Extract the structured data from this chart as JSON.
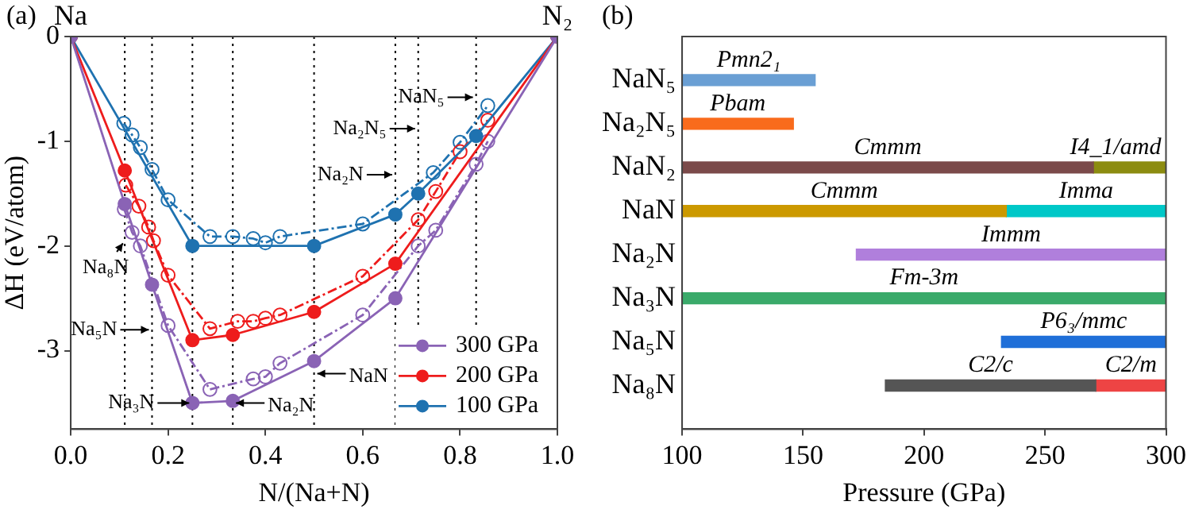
{
  "chart_data": [
    {
      "type": "line",
      "xlabel": "N/(Na+N)",
      "ylabel": "ΔH (eV/atom)",
      "xlim": [
        0,
        1
      ],
      "xticks": [
        {
          "value": 0,
          "label": "0.0"
        },
        {
          "value": 0.2,
          "label": "0.2"
        },
        {
          "value": 0.4,
          "label": "0.4"
        },
        {
          "value": 0.6,
          "label": "0.6"
        },
        {
          "value": 0.8,
          "label": "0.8"
        },
        {
          "value": 1,
          "label": "1.0"
        }
      ],
      "ylim": [
        -3.75,
        0
      ],
      "yticks": [
        0,
        -1,
        -2,
        -3
      ],
      "legend": "bottom right",
      "grid": false,
      "series": [
        {
          "name": "300 GPa",
          "color": "#8a63b5",
          "marker": "circle",
          "line_style": "solid",
          "x": [
            0,
            0.111,
            0.167,
            0.25,
            0.333,
            0.5,
            0.667,
            1
          ],
          "values": [
            0,
            -1.6,
            -2.37,
            -3.5,
            -3.48,
            -3.1,
            -2.5,
            0
          ]
        },
        {
          "name": "200 GPa",
          "color": "#ee1c1c",
          "marker": "circle",
          "line_style": "solid",
          "x": [
            0,
            0.111,
            0.25,
            0.333,
            0.5,
            0.667,
            1
          ],
          "values": [
            0,
            -1.28,
            -2.9,
            -2.85,
            -2.63,
            -2.17,
            0
          ]
        },
        {
          "name": "100 GPa",
          "color": "#1f72b0",
          "marker": "circle",
          "line_style": "solid",
          "x": [
            0,
            0.25,
            0.5,
            0.667,
            0.714,
            0.833,
            1
          ],
          "values": [
            0,
            -2.0,
            -2.0,
            -1.7,
            -1.5,
            -0.95,
            0
          ]
        },
        {
          "color": "#8a63b5",
          "marker": "open circle",
          "line_style": "dashdot",
          "x": [
            0.11,
            0.126,
            0.143,
            0.2,
            0.286,
            0.375,
            0.4,
            0.43,
            0.6,
            0.714,
            0.75,
            0.833,
            0.857
          ],
          "values": [
            -1.65,
            -1.87,
            -2.0,
            -2.76,
            -3.37,
            -3.27,
            -3.25,
            -3.12,
            -2.66,
            -2.0,
            -1.85,
            -1.22,
            -1.0
          ]
        },
        {
          "color": "#ee1c1c",
          "marker": "open circle",
          "line_style": "dashdot",
          "x": [
            0.113,
            0.14,
            0.16,
            0.17,
            0.2,
            0.286,
            0.343,
            0.375,
            0.4,
            0.43,
            0.6,
            0.714,
            0.75,
            0.8,
            0.857
          ],
          "values": [
            -1.42,
            -1.62,
            -1.82,
            -1.95,
            -2.28,
            -2.79,
            -2.72,
            -2.72,
            -2.69,
            -2.66,
            -2.29,
            -1.75,
            -1.48,
            -1.1,
            -0.8
          ]
        },
        {
          "color": "#1f72b0",
          "marker": "open circle",
          "line_style": "dashdot",
          "x": [
            0.109,
            0.126,
            0.143,
            0.167,
            0.2,
            0.286,
            0.333,
            0.375,
            0.4,
            0.43,
            0.6,
            0.745,
            0.8,
            0.857
          ],
          "values": [
            -0.83,
            -0.94,
            -1.06,
            -1.27,
            -1.56,
            -1.91,
            -1.91,
            -1.93,
            -1.97,
            -1.91,
            -1.79,
            -1.3,
            -1.01,
            -0.66
          ]
        }
      ],
      "ref_lines": [
        {
          "axis": "x",
          "value": 0.111,
          "color": "#000000",
          "line_style": "dotted"
        },
        {
          "axis": "x",
          "value": 0.167,
          "color": "#000000",
          "line_style": "dotted"
        },
        {
          "axis": "x",
          "value": 0.25,
          "color": "#000000",
          "line_style": "dotted"
        },
        {
          "axis": "x",
          "value": 0.333,
          "color": "#000000",
          "line_style": "dotted"
        },
        {
          "axis": "x",
          "value": 0.5,
          "color": "#000000",
          "line_style": "dotted"
        },
        {
          "axis": "x",
          "value": 0.667,
          "color": "#000000",
          "line_style": "dotted"
        },
        {
          "axis": "x",
          "value": 0.714,
          "color": "#000000",
          "line_style": "dotted"
        },
        {
          "axis": "x",
          "value": 0.833,
          "color": "#000000",
          "line_style": "dotted"
        }
      ],
      "annotations": [
        "(a)",
        {
          "text": "Na",
          "x": 0,
          "y": 0
        },
        {
          "text": "N₂",
          "x": 1,
          "y": 0
        },
        {
          "text": "NaN₅",
          "x": 0.833,
          "y": -0.58
        },
        {
          "text": "Na₂N₅",
          "x": 0.714,
          "y": -0.88
        },
        {
          "text": "Na₂N",
          "x": 0.667,
          "y": -1.32
        },
        {
          "text": "Na₈N",
          "x": 0.111,
          "y": -1.95
        },
        {
          "text": "Na₅N",
          "x": 0.167,
          "y": -2.8
        },
        {
          "text": "Na₃N",
          "x": 0.25,
          "y": -3.5
        },
        {
          "text": "Na₂N",
          "x": 0.333,
          "y": -3.5
        },
        {
          "text": "NaN",
          "x": 0.5,
          "y": -3.22
        }
      ]
    },
    {
      "type": "bar",
      "orientation": "horizontal",
      "xlabel": "Pressure (GPa)",
      "categories": [
        "NaN₅",
        "Na₂N₅",
        "NaN₂",
        "NaN",
        "Na₂N",
        "Na₃N",
        "Na₅N",
        "Na₈N"
      ],
      "xlim": [
        100,
        300
      ],
      "xticks": [
        100,
        150,
        200,
        250,
        300
      ],
      "legend": false,
      "grid": false,
      "series": [
        {
          "base": [
            100,
            100,
            100,
            100,
            172,
            100,
            232,
            184
          ],
          "values": [
            55,
            46,
            170,
            134,
            128,
            200,
            68,
            87
          ],
          "colors": [
            "#6a9fd4",
            "#f96b1c",
            "#7b4a4a",
            "#cc9900",
            "#b07fdc",
            "#3aaa6a",
            "#1f6fd8",
            "#555555"
          ],
          "value_labels": [
            "Pmn2₁",
            "Pbam",
            "Cmmm",
            "Cmmm",
            "Immm",
            "Fm-3m",
            "P6₃/mmc",
            "C2/c"
          ]
        },
        {
          "base": [
            null,
            null,
            270,
            234,
            null,
            null,
            null,
            271
          ],
          "values": [
            null,
            null,
            30,
            66,
            null,
            null,
            null,
            29
          ],
          "colors": [
            "#000000",
            "#000000",
            "#8c8c10",
            "#00c8c8",
            "#000000",
            "#000000",
            "#000000",
            "#ee4444"
          ],
          "value_labels": [
            null,
            null,
            "I4_1/amd",
            "Imma",
            null,
            null,
            null,
            "C2/m"
          ]
        }
      ],
      "annotations": [
        "(b)"
      ]
    }
  ]
}
